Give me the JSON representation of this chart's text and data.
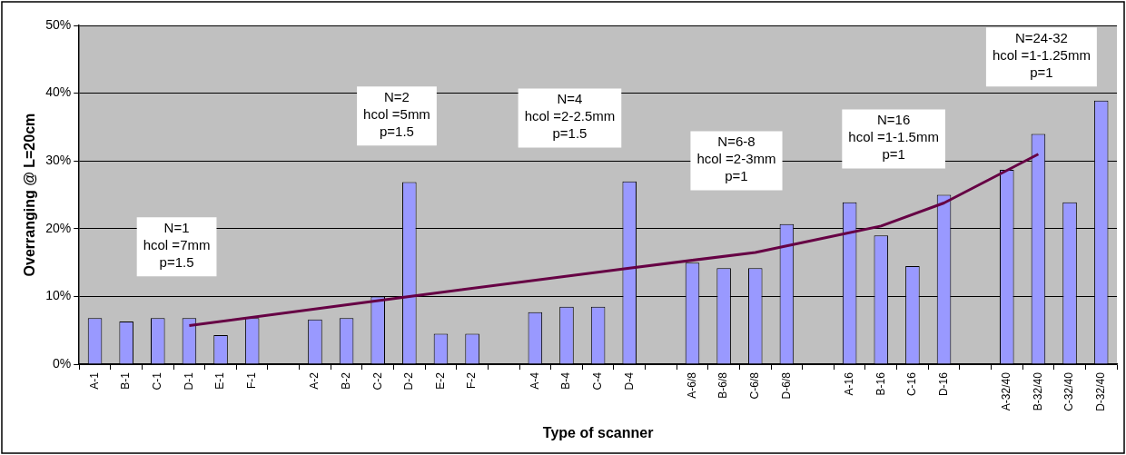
{
  "chart_data": {
    "type": "bar",
    "xlabel": "Type of scanner",
    "ylabel": "Overranging @ L=20cm",
    "categories": [
      "A-1",
      "B-1",
      "C-1",
      "D-1",
      "E-1",
      "F-1",
      null,
      "A-2",
      "B-2",
      "C-2",
      "D-2",
      "E-2",
      "F-2",
      null,
      "A-4",
      "B-4",
      "C-4",
      "D-4",
      null,
      "A-6/8",
      "B-6/8",
      "C-6/8",
      "D-6/8",
      null,
      "A-16",
      "B-16",
      "C-16",
      "D-16",
      null,
      "A-32/40",
      "B-32/40",
      "C-32/40",
      "D-32/40"
    ],
    "series": [
      {
        "color": "#9999ff",
        "values": [
          6.8,
          6.3,
          6.8,
          6.8,
          4.3,
          6.8,
          null,
          6.6,
          6.8,
          10.0,
          26.9,
          4.5,
          4.5,
          null,
          7.7,
          8.5,
          8.5,
          27.0,
          null,
          15.0,
          14.2,
          14.2,
          20.7,
          null,
          23.9,
          19.0,
          14.5,
          25.0,
          null,
          28.7,
          34.0,
          23.9,
          38.9
        ]
      },
      {
        "type": "line",
        "color": "#660044",
        "values": [
          null,
          null,
          null,
          5.7,
          null,
          null,
          null,
          null,
          null,
          null,
          10.0,
          null,
          null,
          null,
          null,
          null,
          null,
          14.2,
          null,
          null,
          null,
          16.5,
          null,
          null,
          null,
          20.4,
          null,
          23.8,
          null,
          null,
          31.0,
          null,
          null
        ]
      }
    ],
    "ylim": [
      0,
      50
    ],
    "yticks": [
      {
        "value": 0,
        "label": "0%"
      },
      {
        "value": 10,
        "label": "10%"
      },
      {
        "value": 20,
        "label": "20%"
      },
      {
        "value": 30,
        "label": "30%"
      },
      {
        "value": 40,
        "label": "40%"
      },
      {
        "value": 50,
        "label": "50%"
      }
    ],
    "grid": "y",
    "legend": false,
    "marker": "none",
    "annotations": [
      "N=1\nhcol =7mm\np=1.5",
      "N=2\nhcol =5mm\np=1.5",
      "N=4\nhcol =2-2.5mm\np=1.5",
      "N=6-8\nhcol =2-3mm\np=1",
      "N=16\nhcol =1-1.5mm\np=1",
      "N=24-32\nhcol =1-1.25mm\np=1"
    ]
  }
}
